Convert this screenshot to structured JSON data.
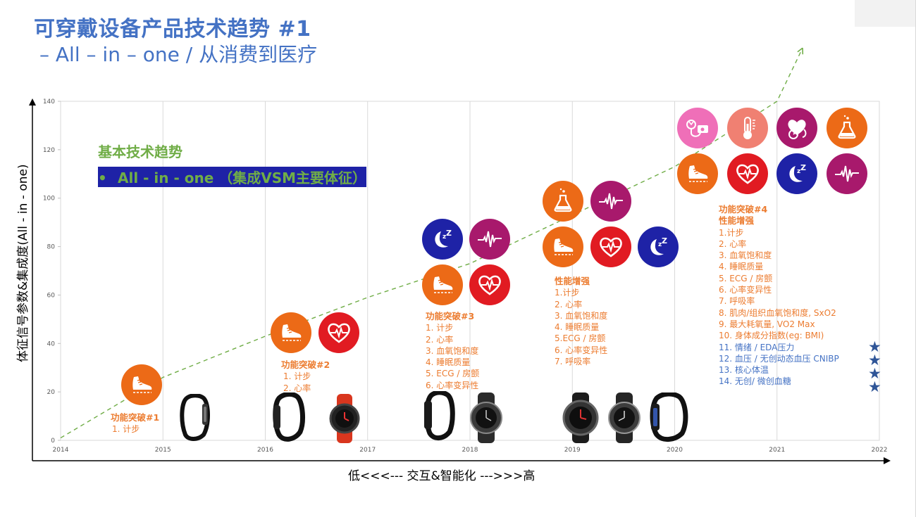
{
  "title": "可穿戴设备产品技术趋势 #1",
  "subtitle": "– All – in – one / 从消费到医疗",
  "trend_heading": "基本技术趋势",
  "trend_bullet": "All - in - one （集成VSM主要体征）",
  "trend_bullet_marker": "•",
  "colors": {
    "title": "#4472c4",
    "trend": "#70ad47",
    "notes": "#ec7c30",
    "notes_medical": "#4472c4",
    "dashed_line": "#70ad47"
  },
  "chart_data": {
    "type": "line",
    "x_ticks": [
      "2014",
      "2015",
      "2016",
      "2017",
      "2018",
      "2019",
      "2020",
      "2021",
      "2022"
    ],
    "y_ticks": [
      "0",
      "20",
      "40",
      "60",
      "80",
      "100",
      "120",
      "140"
    ],
    "ylim": [
      0,
      140
    ],
    "xlabel": "低<<<---   交互&智能化   --->>>高",
    "ylabel": "体征信号参数&集成度(All - in - one)",
    "grid": true,
    "trend_line": {
      "style": "dashed",
      "x": [
        2014,
        2015,
        2016,
        2017,
        2018,
        2019,
        2020,
        2021,
        2021.25
      ],
      "y": [
        1,
        26,
        43,
        59,
        73,
        93,
        113,
        140,
        162
      ]
    }
  },
  "stages": [
    {
      "heading": "功能突破#1",
      "items": [
        "1. 计步"
      ],
      "icons": [
        "walking-shoe-icon"
      ]
    },
    {
      "heading": "功能突破#2",
      "items": [
        "1. 计步",
        "2. 心率"
      ],
      "icons": [
        "walking-shoe-icon",
        "heart-rate-icon"
      ]
    },
    {
      "heading": "功能突破#3",
      "items": [
        "1.     计步",
        "2.     心率",
        "3. 血氧饱和度",
        "4. 睡眠质量",
        "5. ECG / 房颤",
        "6. 心率变异性"
      ],
      "icons": [
        "sleep-icon",
        "ecg-wave-icon",
        "walking-shoe-icon",
        "heart-rate-icon"
      ]
    },
    {
      "heading": "性能增强",
      "items": [
        "1.计步",
        "2. 心率",
        "3. 血氧饱和度",
        "4. 睡眠质量",
        "5.ECG / 房颤",
        "6. 心率变异性",
        "7. 呼吸率"
      ],
      "icons": [
        "lab-flask-icon",
        "ecg-wave-icon",
        "walking-shoe-icon",
        "heart-rate-icon",
        "sleep-icon"
      ]
    },
    {
      "heading": "功能突破#4",
      "heading2": "性能增强",
      "items": [
        "1.计步",
        "2. 心率",
        "3. 血氧饱和度",
        "4. 睡眠质量",
        "5. ECG / 房颤",
        "6. 心率变异性",
        "7. 呼吸率",
        "8. 肌肉/组织血氧饱和度, SxO2",
        "9. 最大耗氧量, VO2 Max",
        "10. 身体成分指数(eg: BMI)"
      ],
      "medical_items": [
        "11. 情绪 / EDA压力",
        "12. 血压 / 无创动态血压 CNIBP",
        "13. 核心体温",
        "14. 无创/ 微创血糖"
      ],
      "icons": [
        "blood-pressure-icon",
        "thermometer-icon",
        "glucose-heart-icon",
        "lab-flask-icon",
        "walking-shoe-icon",
        "heart-rate-icon",
        "sleep-icon",
        "ecg-wave-icon"
      ]
    }
  ],
  "stars": [
    "★",
    "★",
    "★",
    "★"
  ],
  "devices": [
    "fitness-band",
    "fitness-band",
    "sport-watch",
    "fitness-band",
    "smartwatch",
    "smartwatch",
    "smartwatch",
    "fitness-band"
  ]
}
